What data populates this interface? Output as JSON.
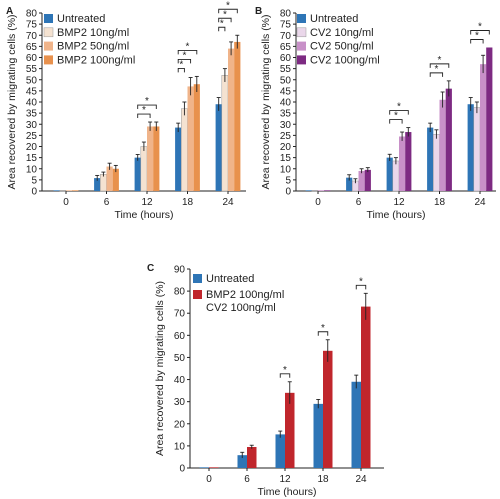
{
  "chart_data": [
    {
      "panel": "A",
      "type": "bar",
      "categories": [
        "0",
        "6",
        "12",
        "18",
        "24"
      ],
      "xlabel": "Time (hours)",
      "ylabel": "Area recovered by migrating cells (%)",
      "ylim": [
        0,
        80
      ],
      "yticks": [
        0,
        5,
        10,
        15,
        20,
        25,
        30,
        35,
        40,
        45,
        50,
        55,
        60,
        65,
        70,
        75,
        80
      ],
      "legend": "top-left",
      "series": [
        {
          "name": "Untreated",
          "color": "#2e75b6",
          "values": [
            0.3,
            5.8,
            15,
            28.5,
            39
          ],
          "errors": [
            0,
            1.2,
            1.4,
            2,
            3
          ]
        },
        {
          "name": "BMP2 10ng/ml",
          "color": "#f4e2d1",
          "values": [
            0.3,
            7.5,
            20,
            37,
            52
          ],
          "errors": [
            0,
            1,
            2,
            3,
            3
          ]
        },
        {
          "name": "BMP2 50ng/ml",
          "color": "#f0b48a",
          "values": [
            0.3,
            11,
            29,
            47,
            64
          ],
          "errors": [
            0,
            1.5,
            2,
            4,
            3
          ]
        },
        {
          "name": "BMP2 100ng/ml",
          "color": "#e8914d",
          "values": [
            0.3,
            10,
            29,
            48,
            67
          ],
          "errors": [
            0,
            1.5,
            2,
            3.5,
            3
          ]
        }
      ],
      "significance": [
        {
          "category": 2,
          "from": 0,
          "to": 2,
          "label": "*"
        },
        {
          "category": 2,
          "from": 0,
          "to": 3,
          "label": "*"
        },
        {
          "category": 3,
          "from": 0,
          "to": 1,
          "label": "*"
        },
        {
          "category": 3,
          "from": 0,
          "to": 2,
          "label": "*"
        },
        {
          "category": 3,
          "from": 0,
          "to": 3,
          "label": "*"
        },
        {
          "category": 4,
          "from": 0,
          "to": 1,
          "label": "*"
        },
        {
          "category": 4,
          "from": 0,
          "to": 2,
          "label": "*"
        },
        {
          "category": 4,
          "from": 0,
          "to": 3,
          "label": "*"
        }
      ]
    },
    {
      "panel": "B",
      "type": "bar",
      "categories": [
        "0",
        "6",
        "12",
        "18",
        "24"
      ],
      "xlabel": "Time (hours)",
      "ylabel": "Area recovered by migrating cells (%)",
      "ylim": [
        0,
        80
      ],
      "yticks": [
        0,
        5,
        10,
        15,
        20,
        25,
        30,
        35,
        40,
        45,
        50,
        55,
        60,
        65,
        70,
        75,
        80
      ],
      "legend": "top-left",
      "series": [
        {
          "name": "Untreated",
          "color": "#2e75b6",
          "values": [
            0.3,
            6,
            15,
            28.5,
            39
          ],
          "errors": [
            0,
            1.3,
            1.5,
            2,
            3
          ]
        },
        {
          "name": "CV2 10ng/ml",
          "color": "#ead7ea",
          "values": [
            0.3,
            4.5,
            13.5,
            25.5,
            37.5
          ],
          "errors": [
            0,
            1,
            1.5,
            2,
            2.5
          ]
        },
        {
          "name": "CV2 50ng/ml",
          "color": "#c890c8",
          "values": [
            0.3,
            9,
            24.5,
            41,
            57
          ],
          "errors": [
            0,
            1,
            2,
            3.5,
            4
          ]
        },
        {
          "name": "CV2 100ng/ml",
          "color": "#7d2a82",
          "values": [
            0.3,
            9.5,
            26.5,
            46,
            64.5
          ],
          "errors": [
            0,
            1,
            2,
            3.5,
            0
          ]
        }
      ],
      "significance": [
        {
          "category": 2,
          "from": 0,
          "to": 2,
          "label": "*"
        },
        {
          "category": 2,
          "from": 0,
          "to": 3,
          "label": "*"
        },
        {
          "category": 3,
          "from": 0,
          "to": 2,
          "label": "*"
        },
        {
          "category": 3,
          "from": 0,
          "to": 3,
          "label": "*"
        },
        {
          "category": 4,
          "from": 0,
          "to": 2,
          "label": "*"
        },
        {
          "category": 4,
          "from": 0,
          "to": 3,
          "label": "*"
        }
      ]
    },
    {
      "panel": "C",
      "type": "bar",
      "categories": [
        "0",
        "6",
        "12",
        "18",
        "24"
      ],
      "xlabel": "Time (hours)",
      "ylabel": "Area recovered by migrating cells (%)",
      "ylim": [
        0,
        90
      ],
      "yticks": [
        0,
        10,
        20,
        30,
        40,
        50,
        60,
        70,
        80,
        90
      ],
      "legend": "top-left",
      "series": [
        {
          "name": "Untreated",
          "color": "#2e75b6",
          "values": [
            0.3,
            5.8,
            15.2,
            29,
            39
          ],
          "errors": [
            0,
            1.3,
            1.5,
            2,
            3
          ]
        },
        {
          "name": "BMP2 100ng/ml\nCV2 100ng/ml",
          "color": "#c0262c",
          "values": [
            0.3,
            9.5,
            34,
            53,
            73
          ],
          "errors": [
            0,
            0.8,
            5,
            5,
            6
          ]
        }
      ],
      "significance": [
        {
          "category": 2,
          "from": 0,
          "to": 1,
          "label": "*"
        },
        {
          "category": 3,
          "from": 0,
          "to": 1,
          "label": "*"
        },
        {
          "category": 4,
          "from": 0,
          "to": 1,
          "label": "*"
        }
      ]
    }
  ]
}
